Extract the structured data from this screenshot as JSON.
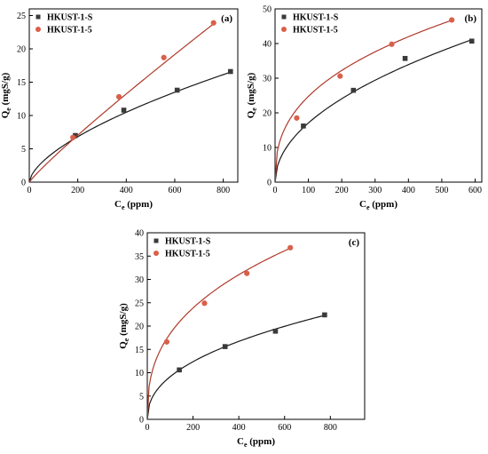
{
  "chart_data": [
    {
      "type": "scatter",
      "panel_label": "(a)",
      "xlabel": "Ce (ppm)",
      "xlabel_main": "C",
      "xlabel_sub": "e",
      "xlabel_rest": " (ppm)",
      "ylabel": "Qe (mgS/g)",
      "ylabel_main": "Q",
      "ylabel_sub": "e",
      "ylabel_rest": " (mgS/g)",
      "xlim": [
        0,
        860
      ],
      "ylim": [
        0,
        26
      ],
      "xticks": [
        0,
        200,
        400,
        600,
        800
      ],
      "yticks": [
        0,
        5,
        10,
        15,
        20,
        25
      ],
      "legend_position": "top-left",
      "series": [
        {
          "name": "HKUST-1-S",
          "marker": "square",
          "color": "#3a3a3a",
          "line_color": "#1a1a1a",
          "x": [
            190,
            390,
            610,
            830
          ],
          "y": [
            7.0,
            10.8,
            13.8,
            16.6
          ],
          "fit": {
            "k": 0.254,
            "n": 0.621
          }
        },
        {
          "name": "HKUST-1-5",
          "marker": "circle",
          "color": "#d9604a",
          "line_color": "#b0392b",
          "x": [
            180,
            370,
            555,
            760
          ],
          "y": [
            6.7,
            12.8,
            18.7,
            23.9
          ],
          "fit": {
            "k": 0.0564,
            "n": 0.911
          }
        }
      ]
    },
    {
      "type": "scatter",
      "panel_label": "(b)",
      "xlabel": "Ce (ppm)",
      "xlabel_main": "C",
      "xlabel_sub": "e",
      "xlabel_rest": " (ppm)",
      "ylabel": "Qe (mgS/g)",
      "ylabel_main": "Q",
      "ylabel_sub": "e",
      "ylabel_rest": " (mgS/g)",
      "xlim": [
        0,
        620
      ],
      "ylim": [
        0,
        50
      ],
      "xticks": [
        0,
        100,
        200,
        300,
        400,
        500,
        600
      ],
      "yticks": [
        0,
        10,
        20,
        30,
        40,
        50
      ],
      "legend_position": "top-left",
      "series": [
        {
          "name": "HKUST-1-S",
          "marker": "square",
          "color": "#3a3a3a",
          "line_color": "#1a1a1a",
          "x": [
            85,
            235,
            390,
            590
          ],
          "y": [
            16.2,
            26.5,
            35.7,
            40.7
          ],
          "fit": {
            "k": 1.747,
            "n": 0.495
          }
        },
        {
          "name": "HKUST-1-5",
          "marker": "circle",
          "color": "#d9604a",
          "line_color": "#b0392b",
          "x": [
            65,
            195,
            350,
            530
          ],
          "y": [
            18.5,
            30.6,
            39.8,
            46.8
          ],
          "fit": {
            "k": 4.28,
            "n": 0.381
          }
        }
      ]
    },
    {
      "type": "scatter",
      "panel_label": "(c)",
      "xlabel": "Ce (ppm)",
      "xlabel_main": "C",
      "xlabel_sub": "e",
      "xlabel_rest": " (ppm)",
      "ylabel": "Qe (mgS/g)",
      "ylabel_main": "Q",
      "ylabel_sub": "e",
      "ylabel_rest": " (mgS/g)",
      "xlim": [
        0,
        950
      ],
      "ylim": [
        0,
        40
      ],
      "xticks": [
        0,
        200,
        400,
        600,
        800
      ],
      "yticks": [
        0,
        5,
        10,
        15,
        20,
        25,
        30,
        35,
        40
      ],
      "legend_position": "top-left",
      "series": [
        {
          "name": "HKUST-1-S",
          "marker": "square",
          "color": "#3a3a3a",
          "line_color": "#1a1a1a",
          "x": [
            140,
            340,
            560,
            775
          ],
          "y": [
            10.6,
            15.6,
            18.9,
            22.4
          ],
          "fit": {
            "k": 1.234,
            "n": 0.435
          }
        },
        {
          "name": "HKUST-1-5",
          "marker": "circle",
          "color": "#d9604a",
          "line_color": "#b0392b",
          "x": [
            85,
            250,
            435,
            625
          ],
          "y": [
            16.6,
            24.9,
            31.3,
            36.8
          ],
          "fit": {
            "k": 3.24,
            "n": 0.377
          }
        }
      ]
    }
  ]
}
